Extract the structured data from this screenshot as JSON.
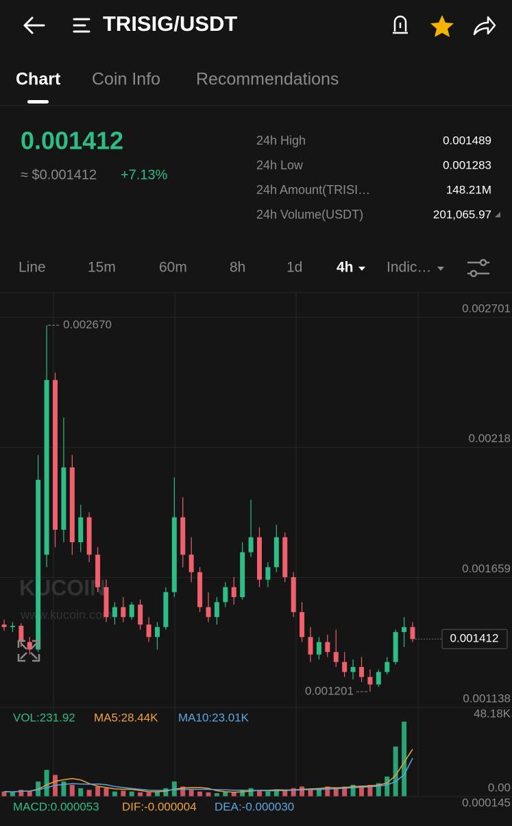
{
  "header": {
    "title": "TRISIG/USDT"
  },
  "tabs": [
    "Chart",
    "Coin Info",
    "Recommendations"
  ],
  "ticker": {
    "price": "0.001412",
    "usd_price": "≈ $0.001412",
    "change": "+7.13%",
    "stats": [
      {
        "label": "24h High",
        "value": "0.001489"
      },
      {
        "label": "24h Low",
        "value": "0.001283"
      },
      {
        "label": "24h Amount(TRISI…",
        "value": "148.21M"
      },
      {
        "label": "24h Volume(USDT)",
        "value": "201,065.97"
      }
    ]
  },
  "intervals": [
    "Line",
    "15m",
    "60m",
    "8h",
    "1d",
    "4h",
    "Indic…"
  ],
  "chart_data": {
    "type": "candlestick",
    "up_color": "#2ebd85",
    "down_color": "#f0616d",
    "ylim": [
      0.001138,
      0.0028
    ],
    "yticks": [
      0.002701,
      0.00218,
      0.001659,
      0.001138
    ],
    "high_label": "0.002670",
    "low_label": "0.001201",
    "last_price_label": "0.001412",
    "watermark": [
      "KUCOIN",
      "www.kucoin.com"
    ],
    "candles": [
      [
        0.00147,
        0.00149,
        0.001445,
        0.00146
      ],
      [
        0.00146,
        0.00148,
        0.00144,
        0.001465
      ],
      [
        0.001465,
        0.001475,
        0.00138,
        0.0014
      ],
      [
        0.0014,
        0.00142,
        0.00135,
        0.00137
      ],
      [
        0.00137,
        0.00215,
        0.00136,
        0.00205
      ],
      [
        0.00175,
        0.00267,
        0.0017,
        0.00245
      ],
      [
        0.00245,
        0.00248,
        0.00178,
        0.00185
      ],
      [
        0.00185,
        0.0023,
        0.0018,
        0.0021
      ],
      [
        0.0021,
        0.00215,
        0.00175,
        0.0018
      ],
      [
        0.0018,
        0.00195,
        0.00176,
        0.0019
      ],
      [
        0.0019,
        0.00192,
        0.00172,
        0.00175
      ],
      [
        0.00175,
        0.00178,
        0.0016,
        0.00162
      ],
      [
        0.00162,
        0.00165,
        0.00148,
        0.0015
      ],
      [
        0.0015,
        0.00156,
        0.00147,
        0.00154
      ],
      [
        0.00154,
        0.00158,
        0.00148,
        0.0015
      ],
      [
        0.0015,
        0.00156,
        0.00149,
        0.00155
      ],
      [
        0.00155,
        0.00157,
        0.00145,
        0.00147
      ],
      [
        0.00147,
        0.0015,
        0.0014,
        0.00142
      ],
      [
        0.00142,
        0.00148,
        0.00137,
        0.00146
      ],
      [
        0.00146,
        0.00162,
        0.00145,
        0.0016
      ],
      [
        0.0016,
        0.00206,
        0.00158,
        0.0019
      ],
      [
        0.0019,
        0.00198,
        0.0017,
        0.00175
      ],
      [
        0.00175,
        0.00182,
        0.00164,
        0.00168
      ],
      [
        0.00168,
        0.0017,
        0.00152,
        0.00154
      ],
      [
        0.00154,
        0.0016,
        0.00148,
        0.0015
      ],
      [
        0.0015,
        0.00158,
        0.00147,
        0.00156
      ],
      [
        0.00156,
        0.00164,
        0.00154,
        0.00162
      ],
      [
        0.00162,
        0.00166,
        0.00155,
        0.00158
      ],
      [
        0.00158,
        0.0018,
        0.00157,
        0.00176
      ],
      [
        0.00176,
        0.00197,
        0.00174,
        0.00182
      ],
      [
        0.00182,
        0.00186,
        0.00162,
        0.00165
      ],
      [
        0.00165,
        0.00172,
        0.00162,
        0.0017
      ],
      [
        0.0017,
        0.00187,
        0.00168,
        0.00182
      ],
      [
        0.00182,
        0.00184,
        0.00164,
        0.00166
      ],
      [
        0.00166,
        0.00168,
        0.0015,
        0.00152
      ],
      [
        0.00152,
        0.00156,
        0.0014,
        0.00142
      ],
      [
        0.00142,
        0.00146,
        0.00132,
        0.00135
      ],
      [
        0.00135,
        0.00142,
        0.00133,
        0.0014
      ],
      [
        0.0014,
        0.00143,
        0.00134,
        0.00136
      ],
      [
        0.00136,
        0.00145,
        0.0013,
        0.00132
      ],
      [
        0.00132,
        0.00136,
        0.00126,
        0.00128
      ],
      [
        0.00128,
        0.00133,
        0.00125,
        0.0013
      ],
      [
        0.0013,
        0.00134,
        0.00124,
        0.00126
      ],
      [
        0.00126,
        0.00129,
        0.001201,
        0.00123
      ],
      [
        0.00123,
        0.00129,
        0.00122,
        0.00128
      ],
      [
        0.00128,
        0.00134,
        0.00127,
        0.00132
      ],
      [
        0.00132,
        0.00145,
        0.00131,
        0.00144
      ],
      [
        0.00144,
        0.0015,
        0.00138,
        0.00146
      ],
      [
        0.00146,
        0.00148,
        0.0014,
        0.001412
      ]
    ],
    "volume": {
      "values": [
        3000,
        2500,
        4000,
        3500,
        9000,
        16000,
        13000,
        9000,
        7000,
        5000,
        4000,
        6000,
        5000,
        3000,
        3500,
        3000,
        2500,
        2500,
        3000,
        5000,
        9000,
        6000,
        4000,
        3000,
        2500,
        2000,
        3000,
        2500,
        4000,
        5000,
        4000,
        3000,
        4000,
        3500,
        5000,
        6000,
        4500,
        5000,
        6000,
        5500,
        6000,
        7000,
        6500,
        7000,
        8000,
        12000,
        30000,
        45000,
        231.92
      ],
      "ma5": [
        3000,
        2800,
        3200,
        3300,
        4400,
        7000,
        9100,
        10100,
        10800,
        10000,
        7800,
        6200,
        5400,
        4600,
        4300,
        4300,
        3600,
        2900,
        2900,
        3200,
        4400,
        5100,
        5400,
        5400,
        4900,
        3500,
        2900,
        2600,
        2800,
        3300,
        3700,
        3700,
        4000,
        3900,
        3900,
        4300,
        4600,
        4800,
        5300,
        5200,
        5400,
        5900,
        6200,
        6400,
        6900,
        8100,
        12700,
        20500,
        28440
      ],
      "ma10": [
        3000,
        2800,
        3200,
        3300,
        4000,
        5300,
        6700,
        7300,
        7700,
        7500,
        7400,
        7500,
        7100,
        6000,
        5400,
        4800,
        4300,
        3800,
        3700,
        3700,
        4100,
        4300,
        4400,
        4300,
        4300,
        4100,
        4000,
        3800,
        3800,
        3700,
        3600,
        3400,
        3500,
        3600,
        3800,
        4000,
        4200,
        4200,
        4500,
        4700,
        5000,
        5300,
        5600,
        5800,
        6300,
        7000,
        9000,
        13000,
        23010
      ],
      "ma5_color": "#f0a23a",
      "ma10_color": "#5ba7e0",
      "ylim": [
        0,
        48180
      ],
      "yticks": [
        {
          "value": 48180,
          "label": "48.18K"
        },
        {
          "value": 0,
          "label": "0.00"
        }
      ],
      "legend": [
        "VOL:231.92",
        "MA5:28.44K",
        "MA10:23.01K"
      ]
    },
    "macd": {
      "legend": [
        "MACD:0.000053",
        "DIF:-0.000004",
        "DEA:-0.000030"
      ],
      "axis_label": "0.000145"
    }
  }
}
